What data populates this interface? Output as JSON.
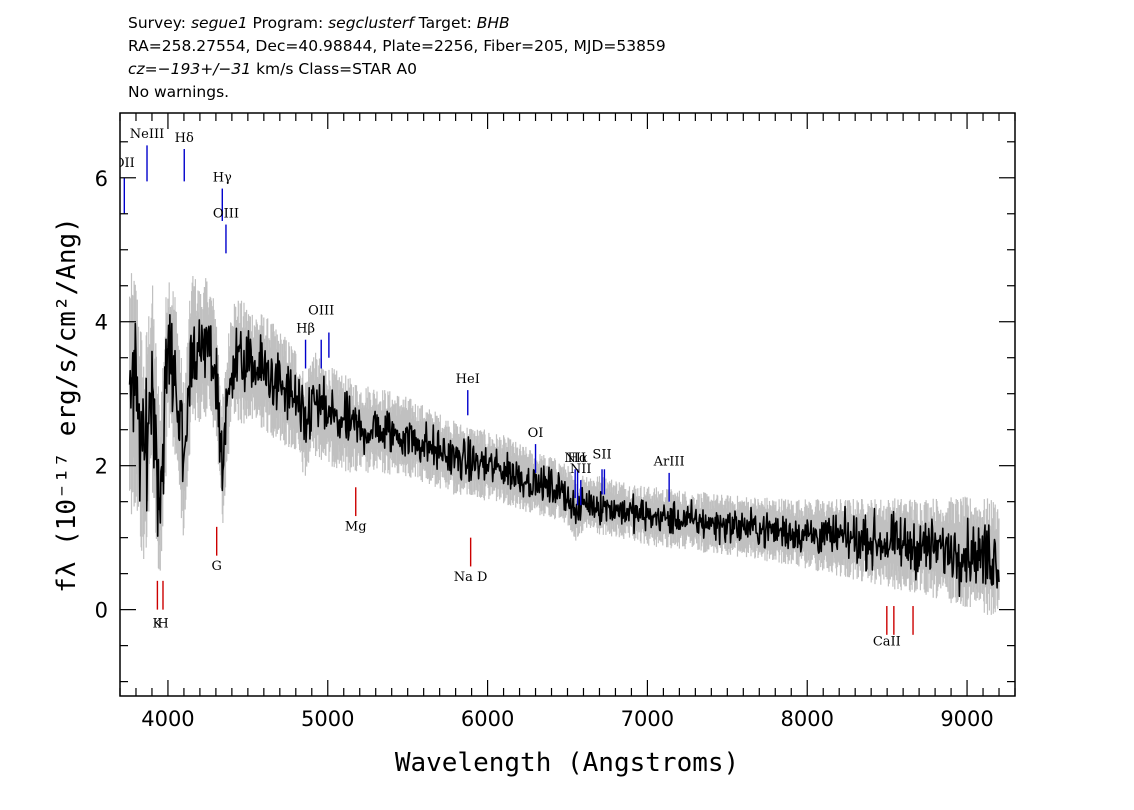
{
  "header": {
    "line1": {
      "survey_label": "Survey: ",
      "survey": "segue1",
      "program_label": " Program: ",
      "program": "segclusterf",
      "target_label": " Target: ",
      "target": "BHB"
    },
    "line2": "RA=258.27554, Dec=40.98844, Plate=2256, Fiber=205, MJD=53859",
    "line3": {
      "cz": "cz=−193+/−31",
      "rest": " km/s Class=STAR A0"
    },
    "line4": "No warnings."
  },
  "chart_data": {
    "type": "line",
    "xlabel": "Wavelength (Angstroms)",
    "ylabel": "fλ (10⁻¹⁷ erg/s/cm²/Ang)",
    "xlim": [
      3700,
      9300
    ],
    "ylim": [
      -1.2,
      6.9
    ],
    "x_ticks": [
      4000,
      5000,
      6000,
      7000,
      8000,
      9000
    ],
    "x_tick_labels": [
      "4000",
      "5000",
      "6000",
      "7000",
      "8000",
      "9000"
    ],
    "y_ticks": [
      0,
      2,
      4,
      6
    ],
    "y_tick_labels": [
      "0",
      "2",
      "4",
      "6"
    ],
    "series": [
      {
        "role": "flux",
        "color": "#000000",
        "x": [
          3800,
          3850,
          3900,
          3950,
          4000,
          4050,
          4100,
          4150,
          4200,
          4250,
          4300,
          4340,
          4400,
          4500,
          4600,
          4700,
          4800,
          4861,
          4900,
          5000,
          5100,
          5200,
          5300,
          5400,
          5500,
          5600,
          5700,
          5800,
          5900,
          6000,
          6100,
          6200,
          6300,
          6400,
          6500,
          6563,
          6600,
          6700,
          6800,
          6900,
          7000,
          7200,
          7400,
          7600,
          7800,
          8000,
          8200,
          8400,
          8600,
          8800,
          9000,
          9200
        ],
        "y": [
          3.0,
          2.0,
          3.2,
          1.5,
          3.6,
          3.2,
          2.0,
          3.7,
          3.5,
          3.7,
          3.3,
          2.0,
          3.5,
          3.4,
          3.3,
          3.1,
          2.9,
          2.5,
          2.9,
          2.7,
          2.6,
          2.5,
          2.5,
          2.45,
          2.4,
          2.3,
          2.2,
          2.1,
          2.05,
          2.0,
          1.95,
          1.85,
          1.75,
          1.7,
          1.6,
          1.3,
          1.5,
          1.45,
          1.4,
          1.35,
          1.3,
          1.25,
          1.2,
          1.15,
          1.1,
          1.05,
          1.0,
          0.95,
          0.9,
          0.85,
          0.8,
          0.7
        ]
      },
      {
        "role": "error",
        "color": "#c0c0c0",
        "x": [
          3800,
          4000,
          4200,
          4500,
          5000,
          5500,
          6000,
          6500,
          7000,
          7500,
          8000,
          8500,
          9000,
          9200
        ],
        "y": [
          1.2,
          0.9,
          0.7,
          0.6,
          0.5,
          0.4,
          0.35,
          0.3,
          0.3,
          0.3,
          0.35,
          0.45,
          0.55,
          0.6
        ]
      }
    ],
    "lines": [
      {
        "label": "OII",
        "x": 3727,
        "color": "#0000cc",
        "y1": 5.5,
        "y2": 6.0,
        "label_y": 6.15
      },
      {
        "label": "NeIII",
        "x": 3869,
        "color": "#0000cc",
        "y1": 5.95,
        "y2": 6.45,
        "label_y": 6.55
      },
      {
        "label": "Hδ",
        "x": 4102,
        "color": "#0000cc",
        "y1": 5.95,
        "y2": 6.4,
        "label_y": 6.5
      },
      {
        "label": "Hγ",
        "x": 4340,
        "color": "#0000cc",
        "y1": 5.4,
        "y2": 5.85,
        "label_y": 5.95
      },
      {
        "label": "OIII",
        "x": 4363,
        "color": "#0000cc",
        "y1": 4.95,
        "y2": 5.35,
        "label_y": 5.45
      },
      {
        "label": "Hβ",
        "x": 4861,
        "color": "#0000cc",
        "y1": 3.35,
        "y2": 3.75,
        "label_y": 3.85
      },
      {
        "label": "OIII",
        "x": 4959,
        "color": "#0000cc",
        "y1": 3.35,
        "y2": 3.75,
        "label_y": 4.1
      },
      {
        "label": "OIII",
        "x": 5007,
        "color": "#0000cc",
        "y1": 3.5,
        "y2": 3.85,
        "label_y": 4.1
      },
      {
        "label": "HeI",
        "x": 5876,
        "color": "#0000cc",
        "y1": 2.7,
        "y2": 3.05,
        "label_y": 3.15
      },
      {
        "label": "OI",
        "x": 6300,
        "color": "#0000cc",
        "y1": 1.9,
        "y2": 2.3,
        "label_y": 2.4
      },
      {
        "label": "NII",
        "x": 6548,
        "color": "#0000cc",
        "y1": 1.55,
        "y2": 1.95,
        "label_y": 2.05
      },
      {
        "label": "Hα",
        "x": 6563,
        "color": "#0000cc",
        "y1": 1.45,
        "y2": 1.95,
        "label_y": 2.05
      },
      {
        "label": "NII",
        "x": 6583,
        "color": "#0000cc",
        "y1": 1.45,
        "y2": 1.8,
        "label_y": 1.9
      },
      {
        "label": "SII",
        "x": 6716,
        "color": "#0000cc",
        "y1": 1.6,
        "y2": 1.95,
        "label_y": 2.1
      },
      {
        "label": "SII",
        "x": 6731,
        "color": "#0000cc",
        "y1": 1.6,
        "y2": 1.95,
        "label_y": 2.1
      },
      {
        "label": "ArIII",
        "x": 7136,
        "color": "#0000cc",
        "y1": 1.5,
        "y2": 1.9,
        "label_y": 2.0
      },
      {
        "label": "K",
        "x": 3934,
        "color": "#cc0000",
        "y1": 0.0,
        "y2": 0.4,
        "label_y": -0.25
      },
      {
        "label": "H",
        "x": 3969,
        "color": "#cc0000",
        "y1": 0.0,
        "y2": 0.4,
        "label_y": -0.25
      },
      {
        "label": "G",
        "x": 4305,
        "color": "#cc0000",
        "y1": 0.75,
        "y2": 1.15,
        "label_y": 0.55
      },
      {
        "label": "Mg",
        "x": 5175,
        "color": "#cc0000",
        "y1": 1.3,
        "y2": 1.7,
        "label_y": 1.1
      },
      {
        "label": "Na D",
        "x": 5894,
        "color": "#cc0000",
        "y1": 0.6,
        "y2": 1.0,
        "label_y": 0.4
      },
      {
        "label": "CaII",
        "x": 8498,
        "color": "#cc0000",
        "y1": -0.35,
        "y2": 0.05,
        "label_y": -0.5
      },
      {
        "label": "CaII",
        "x": 8542,
        "color": "#cc0000",
        "y1": -0.35,
        "y2": 0.05,
        "label_y": -0.5
      },
      {
        "label": "CaII",
        "x": 8662,
        "color": "#cc0000",
        "y1": -0.35,
        "y2": 0.05,
        "label_y": -0.5
      }
    ]
  }
}
